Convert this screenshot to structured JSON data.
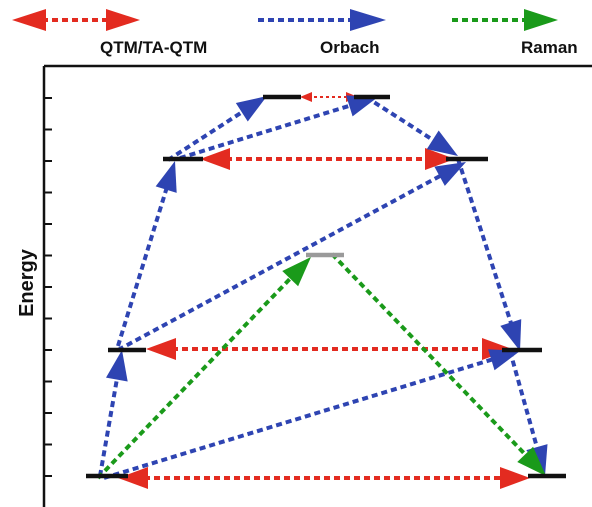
{
  "legend": {
    "qtm": {
      "label": "QTM/TA-QTM",
      "color": "#e32b20"
    },
    "orbach": {
      "label": "Orbach",
      "color": "#2e44b2"
    },
    "raman": {
      "label": "Raman",
      "color": "#1a9a1a"
    }
  },
  "axis": {
    "ylabel": "Energy"
  },
  "colors": {
    "level": "#111111",
    "virtual_level": "#9a9a9a",
    "frame": "#111111"
  }
}
